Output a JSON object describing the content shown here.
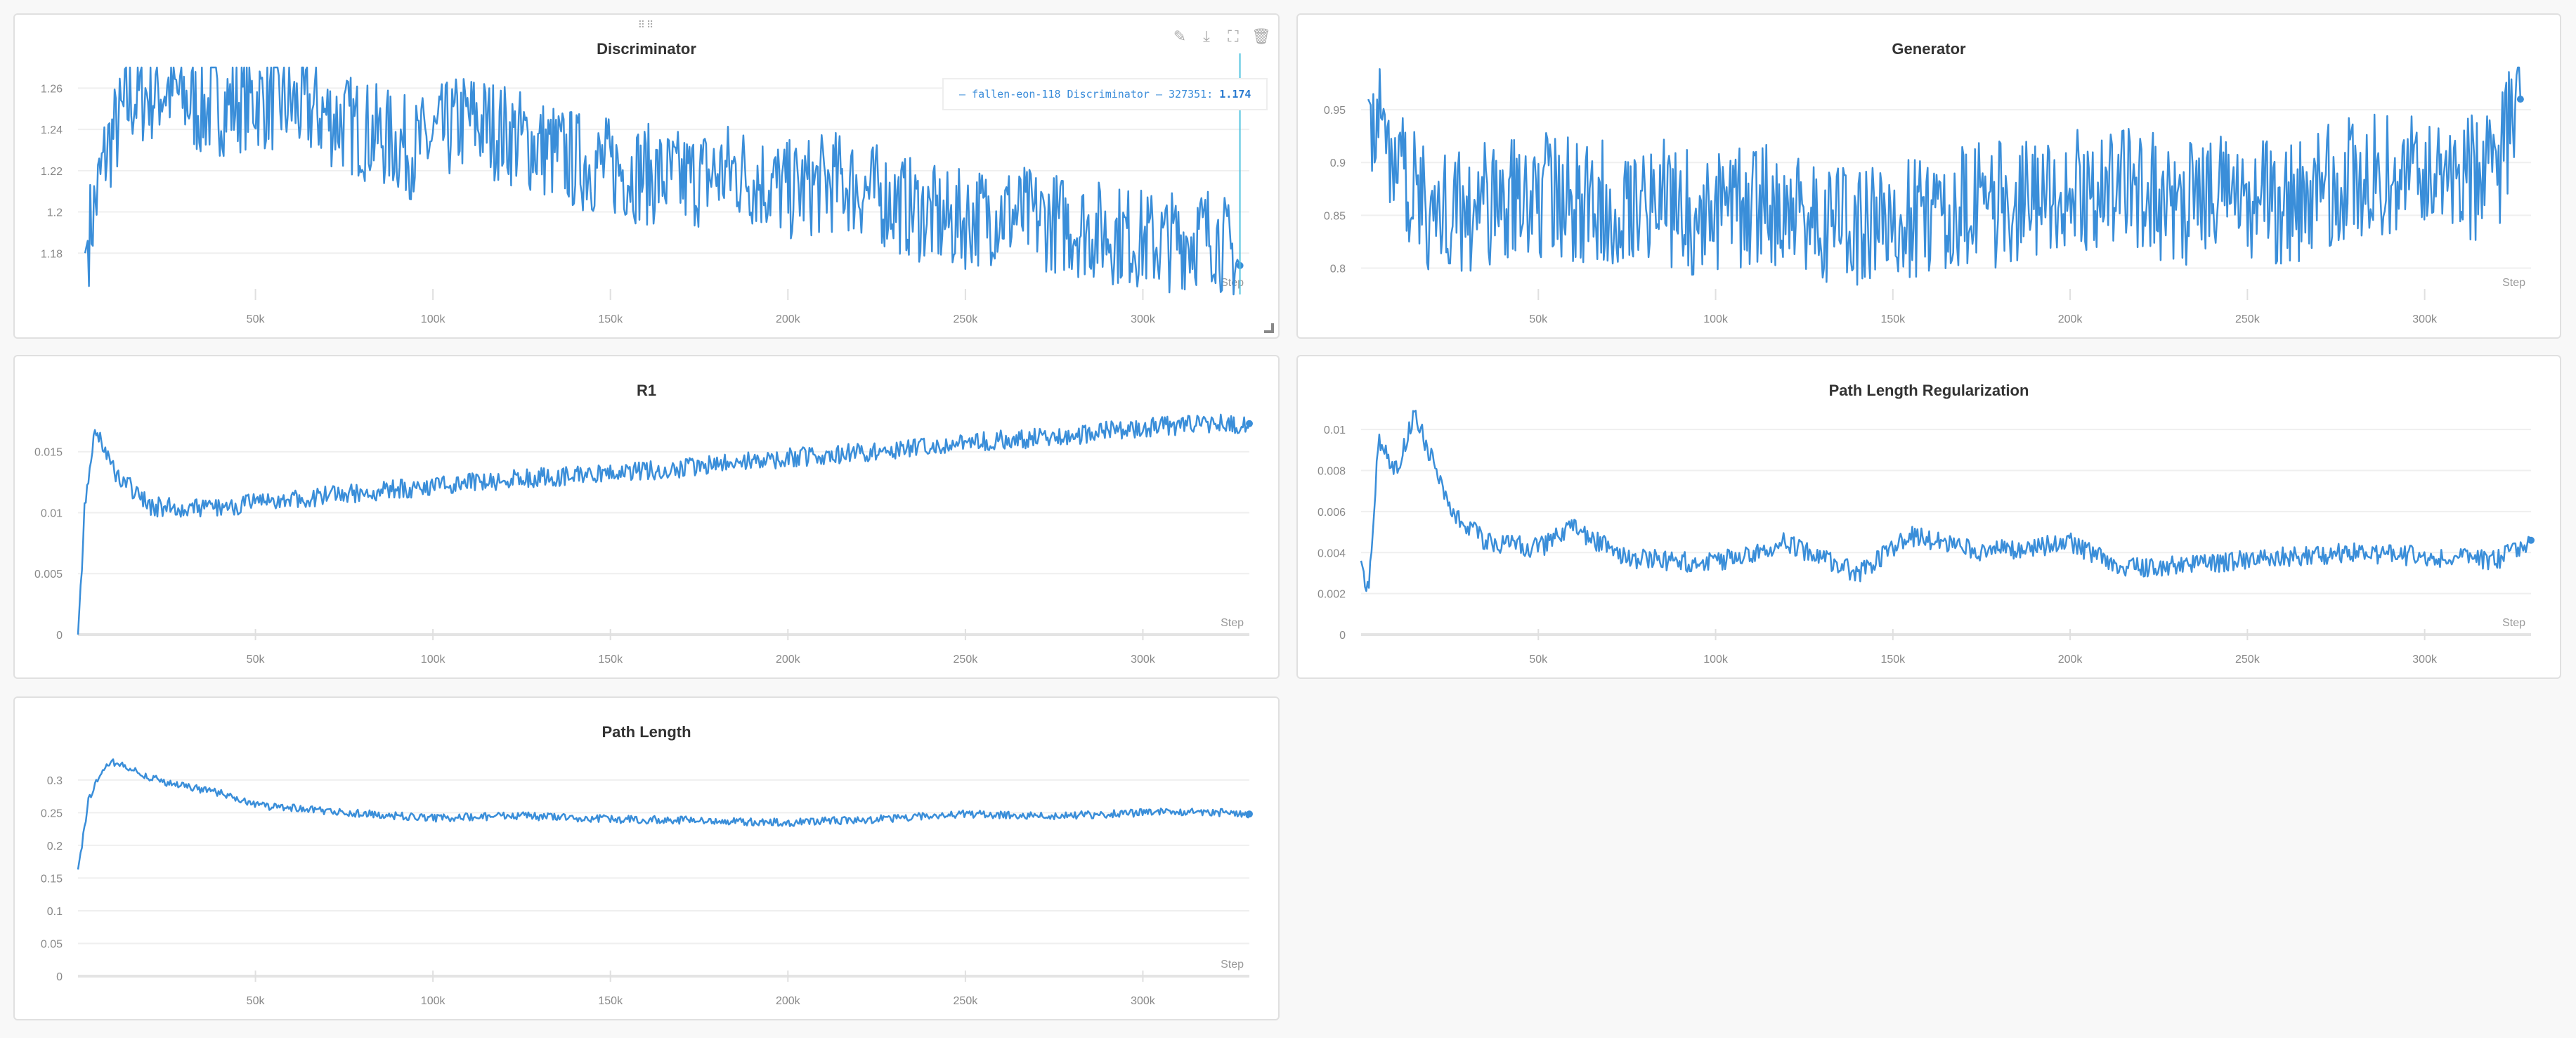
{
  "accent_color": "#3a8ed9",
  "run_name": "fallen-eon-118",
  "x_axis": {
    "label": "Step",
    "ticks": [
      "50k",
      "100k",
      "150k",
      "200k",
      "250k",
      "300k"
    ],
    "tick_values": [
      50000,
      100000,
      150000,
      200000,
      250000,
      300000
    ],
    "range": [
      0,
      330000
    ]
  },
  "toolbar": {
    "edit_icon": "✎",
    "download_icon": "⤓",
    "fullscreen_icon": "⛶",
    "delete_icon": "🗑",
    "drag_handle": "⠿⠿"
  },
  "panels": [
    {
      "title": "Discriminator",
      "show_step_label": true,
      "tooltip": {
        "prefix": "— fallen-eon-118 Discriminator — 327351: ",
        "value": "1.174"
      },
      "y_ticks": [
        "1.26",
        "1.24",
        "1.22",
        "1.2",
        "1.18"
      ]
    },
    {
      "title": "Generator",
      "show_step_label": true,
      "y_ticks": [
        "0.95",
        "0.9",
        "0.85",
        "0.8"
      ]
    },
    {
      "title": "R1",
      "show_step_label": true,
      "y_ticks": [
        "0.015",
        "0.01",
        "0.005",
        "0"
      ]
    },
    {
      "title": "Path Length Regularization",
      "show_step_label": true,
      "y_ticks": [
        "0.01",
        "0.008",
        "0.006",
        "0.004",
        "0.002",
        "0"
      ]
    },
    {
      "title": "Path Length",
      "show_step_label": true,
      "y_ticks": [
        "0.3",
        "0.25",
        "0.2",
        "0.15",
        "0.1",
        "0.05",
        "0"
      ]
    }
  ],
  "chart_data": [
    {
      "type": "line",
      "title": "Discriminator",
      "xlabel": "Step",
      "ylabel": "",
      "ylim": [
        1.16,
        1.27
      ],
      "xlim": [
        0,
        330000
      ],
      "series": [
        {
          "name": "fallen-eon-118",
          "x": [
            2000,
            8000,
            15000,
            25000,
            35000,
            50000,
            65000,
            80000,
            95000,
            110000,
            125000,
            140000,
            155000,
            170000,
            185000,
            200000,
            215000,
            230000,
            245000,
            260000,
            275000,
            290000,
            305000,
            320000,
            327351
          ],
          "values": [
            1.18,
            1.23,
            1.255,
            1.26,
            1.25,
            1.255,
            1.25,
            1.24,
            1.23,
            1.245,
            1.235,
            1.225,
            1.22,
            1.215,
            1.22,
            1.21,
            1.215,
            1.205,
            1.195,
            1.2,
            1.195,
            1.19,
            1.185,
            1.19,
            1.174
          ]
        }
      ],
      "tooltip": {
        "step": 327351,
        "value": 1.174
      }
    },
    {
      "type": "line",
      "title": "Generator",
      "xlabel": "Step",
      "ylabel": "",
      "ylim": [
        0.775,
        0.99
      ],
      "xlim": [
        0,
        330000
      ],
      "series": [
        {
          "name": "fallen-eon-118",
          "x": [
            2000,
            10000,
            20000,
            35000,
            50000,
            65000,
            80000,
            95000,
            110000,
            125000,
            140000,
            155000,
            170000,
            185000,
            200000,
            215000,
            230000,
            245000,
            260000,
            275000,
            290000,
            305000,
            320000,
            327000
          ],
          "values": [
            0.96,
            0.9,
            0.85,
            0.86,
            0.87,
            0.86,
            0.87,
            0.85,
            0.86,
            0.85,
            0.84,
            0.85,
            0.86,
            0.86,
            0.87,
            0.88,
            0.86,
            0.87,
            0.86,
            0.88,
            0.89,
            0.88,
            0.89,
            0.96
          ]
        }
      ]
    },
    {
      "type": "line",
      "title": "R1",
      "xlabel": "Step",
      "ylabel": "",
      "ylim": [
        0,
        0.0185
      ],
      "xlim": [
        0,
        330000
      ],
      "series": [
        {
          "name": "fallen-eon-118",
          "x": [
            0,
            2000,
            5000,
            10000,
            20000,
            35000,
            50000,
            75000,
            100000,
            125000,
            150000,
            175000,
            200000,
            225000,
            250000,
            275000,
            300000,
            315000,
            330000
          ],
          "values": [
            0,
            0.011,
            0.017,
            0.0135,
            0.0105,
            0.0103,
            0.0108,
            0.0115,
            0.0122,
            0.0128,
            0.0132,
            0.0138,
            0.0145,
            0.015,
            0.0158,
            0.0162,
            0.017,
            0.0172,
            0.0173
          ]
        }
      ]
    },
    {
      "type": "line",
      "title": "Path Length Regularization",
      "xlabel": "Step",
      "ylabel": "",
      "ylim": [
        0,
        0.011
      ],
      "xlim": [
        0,
        330000
      ],
      "series": [
        {
          "name": "fallen-eon-118",
          "x": [
            0,
            2000,
            5000,
            10000,
            15000,
            25000,
            35000,
            50000,
            60000,
            75000,
            100000,
            120000,
            140000,
            155000,
            175000,
            200000,
            215000,
            240000,
            260000,
            280000,
            300000,
            320000,
            330000
          ],
          "values": [
            0.0036,
            0.0022,
            0.0094,
            0.008,
            0.0108,
            0.0062,
            0.0045,
            0.0042,
            0.0052,
            0.0037,
            0.0035,
            0.0045,
            0.003,
            0.0048,
            0.004,
            0.0045,
            0.0032,
            0.0035,
            0.0038,
            0.004,
            0.0038,
            0.0036,
            0.0046
          ]
        }
      ]
    },
    {
      "type": "line",
      "title": "Path Length",
      "xlabel": "Step",
      "ylabel": "",
      "ylim": [
        0,
        0.345
      ],
      "xlim": [
        0,
        330000
      ],
      "series": [
        {
          "name": "fallen-eon-118",
          "x": [
            0,
            3000,
            6000,
            10000,
            15000,
            25000,
            40000,
            50000,
            70000,
            100000,
            125000,
            150000,
            175000,
            200000,
            225000,
            250000,
            275000,
            300000,
            315000,
            330000
          ],
          "values": [
            0.163,
            0.27,
            0.31,
            0.327,
            0.315,
            0.295,
            0.28,
            0.262,
            0.252,
            0.242,
            0.245,
            0.24,
            0.238,
            0.235,
            0.24,
            0.248,
            0.245,
            0.25,
            0.252,
            0.248
          ]
        }
      ]
    }
  ]
}
